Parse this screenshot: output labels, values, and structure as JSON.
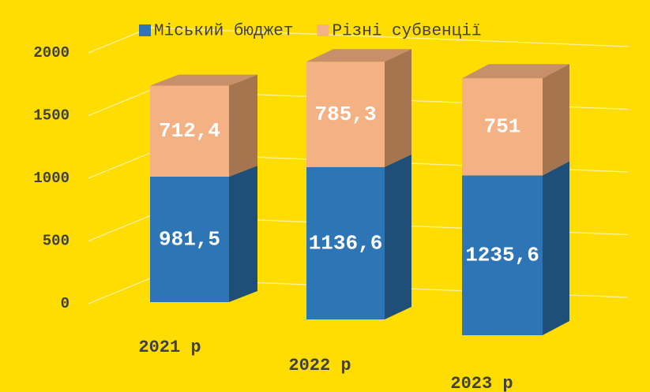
{
  "chart_data": {
    "type": "bar",
    "stacked": true,
    "categories": [
      "2021 р",
      "2022 р",
      "2023 р"
    ],
    "series": [
      {
        "name": "Міський бюджет",
        "color": "#2e75b6",
        "values": [
          981.5,
          1136.6,
          1235.6
        ],
        "value_labels": [
          "981,5",
          "1136,6",
          "1235,6"
        ]
      },
      {
        "name": "Різні субвенції",
        "color": "#f4b183",
        "values": [
          712.4,
          785.3,
          751
        ],
        "value_labels": [
          "712,4",
          "785,3",
          "751"
        ]
      }
    ],
    "ylim": [
      0,
      2000
    ],
    "yticks": [
      0,
      500,
      1000,
      1500,
      2000
    ],
    "grid": true,
    "legend": "top"
  }
}
